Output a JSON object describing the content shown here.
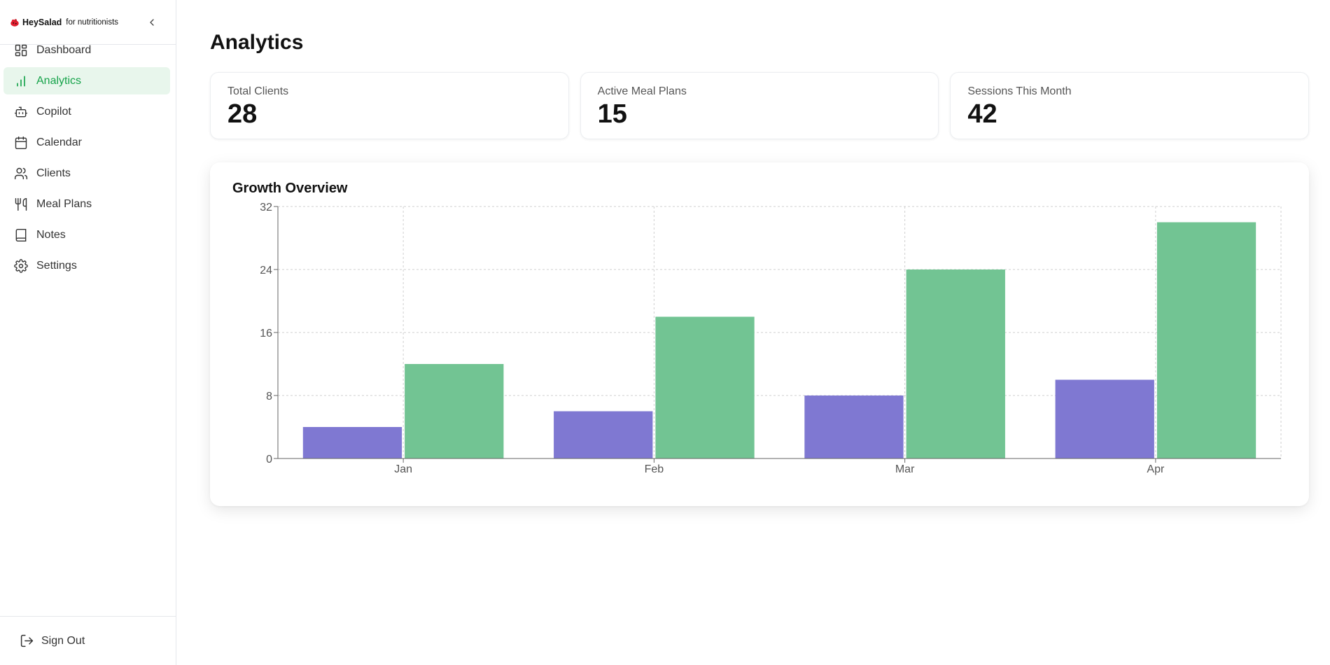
{
  "brand": {
    "name": "HeySalad",
    "subtitle": "for nutritionists",
    "logo_icon": "salad-logo-icon"
  },
  "sidebar": {
    "collapse_icon": "chevron-left-icon",
    "items": [
      {
        "label": "Dashboard",
        "icon": "layout-grid-icon",
        "active": false
      },
      {
        "label": "Analytics",
        "icon": "bar-chart-icon",
        "active": true
      },
      {
        "label": "Copilot",
        "icon": "bot-icon",
        "active": false
      },
      {
        "label": "Calendar",
        "icon": "calendar-icon",
        "active": false
      },
      {
        "label": "Clients",
        "icon": "users-icon",
        "active": false
      },
      {
        "label": "Meal Plans",
        "icon": "utensils-icon",
        "active": false
      },
      {
        "label": "Notes",
        "icon": "book-icon",
        "active": false
      },
      {
        "label": "Settings",
        "icon": "gear-icon",
        "active": false
      }
    ],
    "footer": {
      "label": "Sign Out",
      "icon": "log-out-icon"
    }
  },
  "page": {
    "title": "Analytics"
  },
  "stats": [
    {
      "label": "Total Clients",
      "value": "28"
    },
    {
      "label": "Active Meal Plans",
      "value": "15"
    },
    {
      "label": "Sessions This Month",
      "value": "42"
    }
  ],
  "colors": {
    "accent": "#16a34a",
    "active_bg": "#e8f6ec",
    "series_a": "#7f78d2",
    "series_b": "#72c493"
  },
  "chart_data": {
    "type": "bar",
    "title": "Growth Overview",
    "categories": [
      "Jan",
      "Feb",
      "Mar",
      "Apr"
    ],
    "series": [
      {
        "values": [
          4,
          6,
          8,
          10
        ],
        "color": "#7f78d2"
      },
      {
        "values": [
          12,
          18,
          24,
          30
        ],
        "color": "#72c493"
      }
    ],
    "ylim": [
      0,
      32
    ],
    "yticks": [
      0,
      8,
      16,
      24,
      32
    ],
    "grid": true,
    "legend": "none"
  }
}
